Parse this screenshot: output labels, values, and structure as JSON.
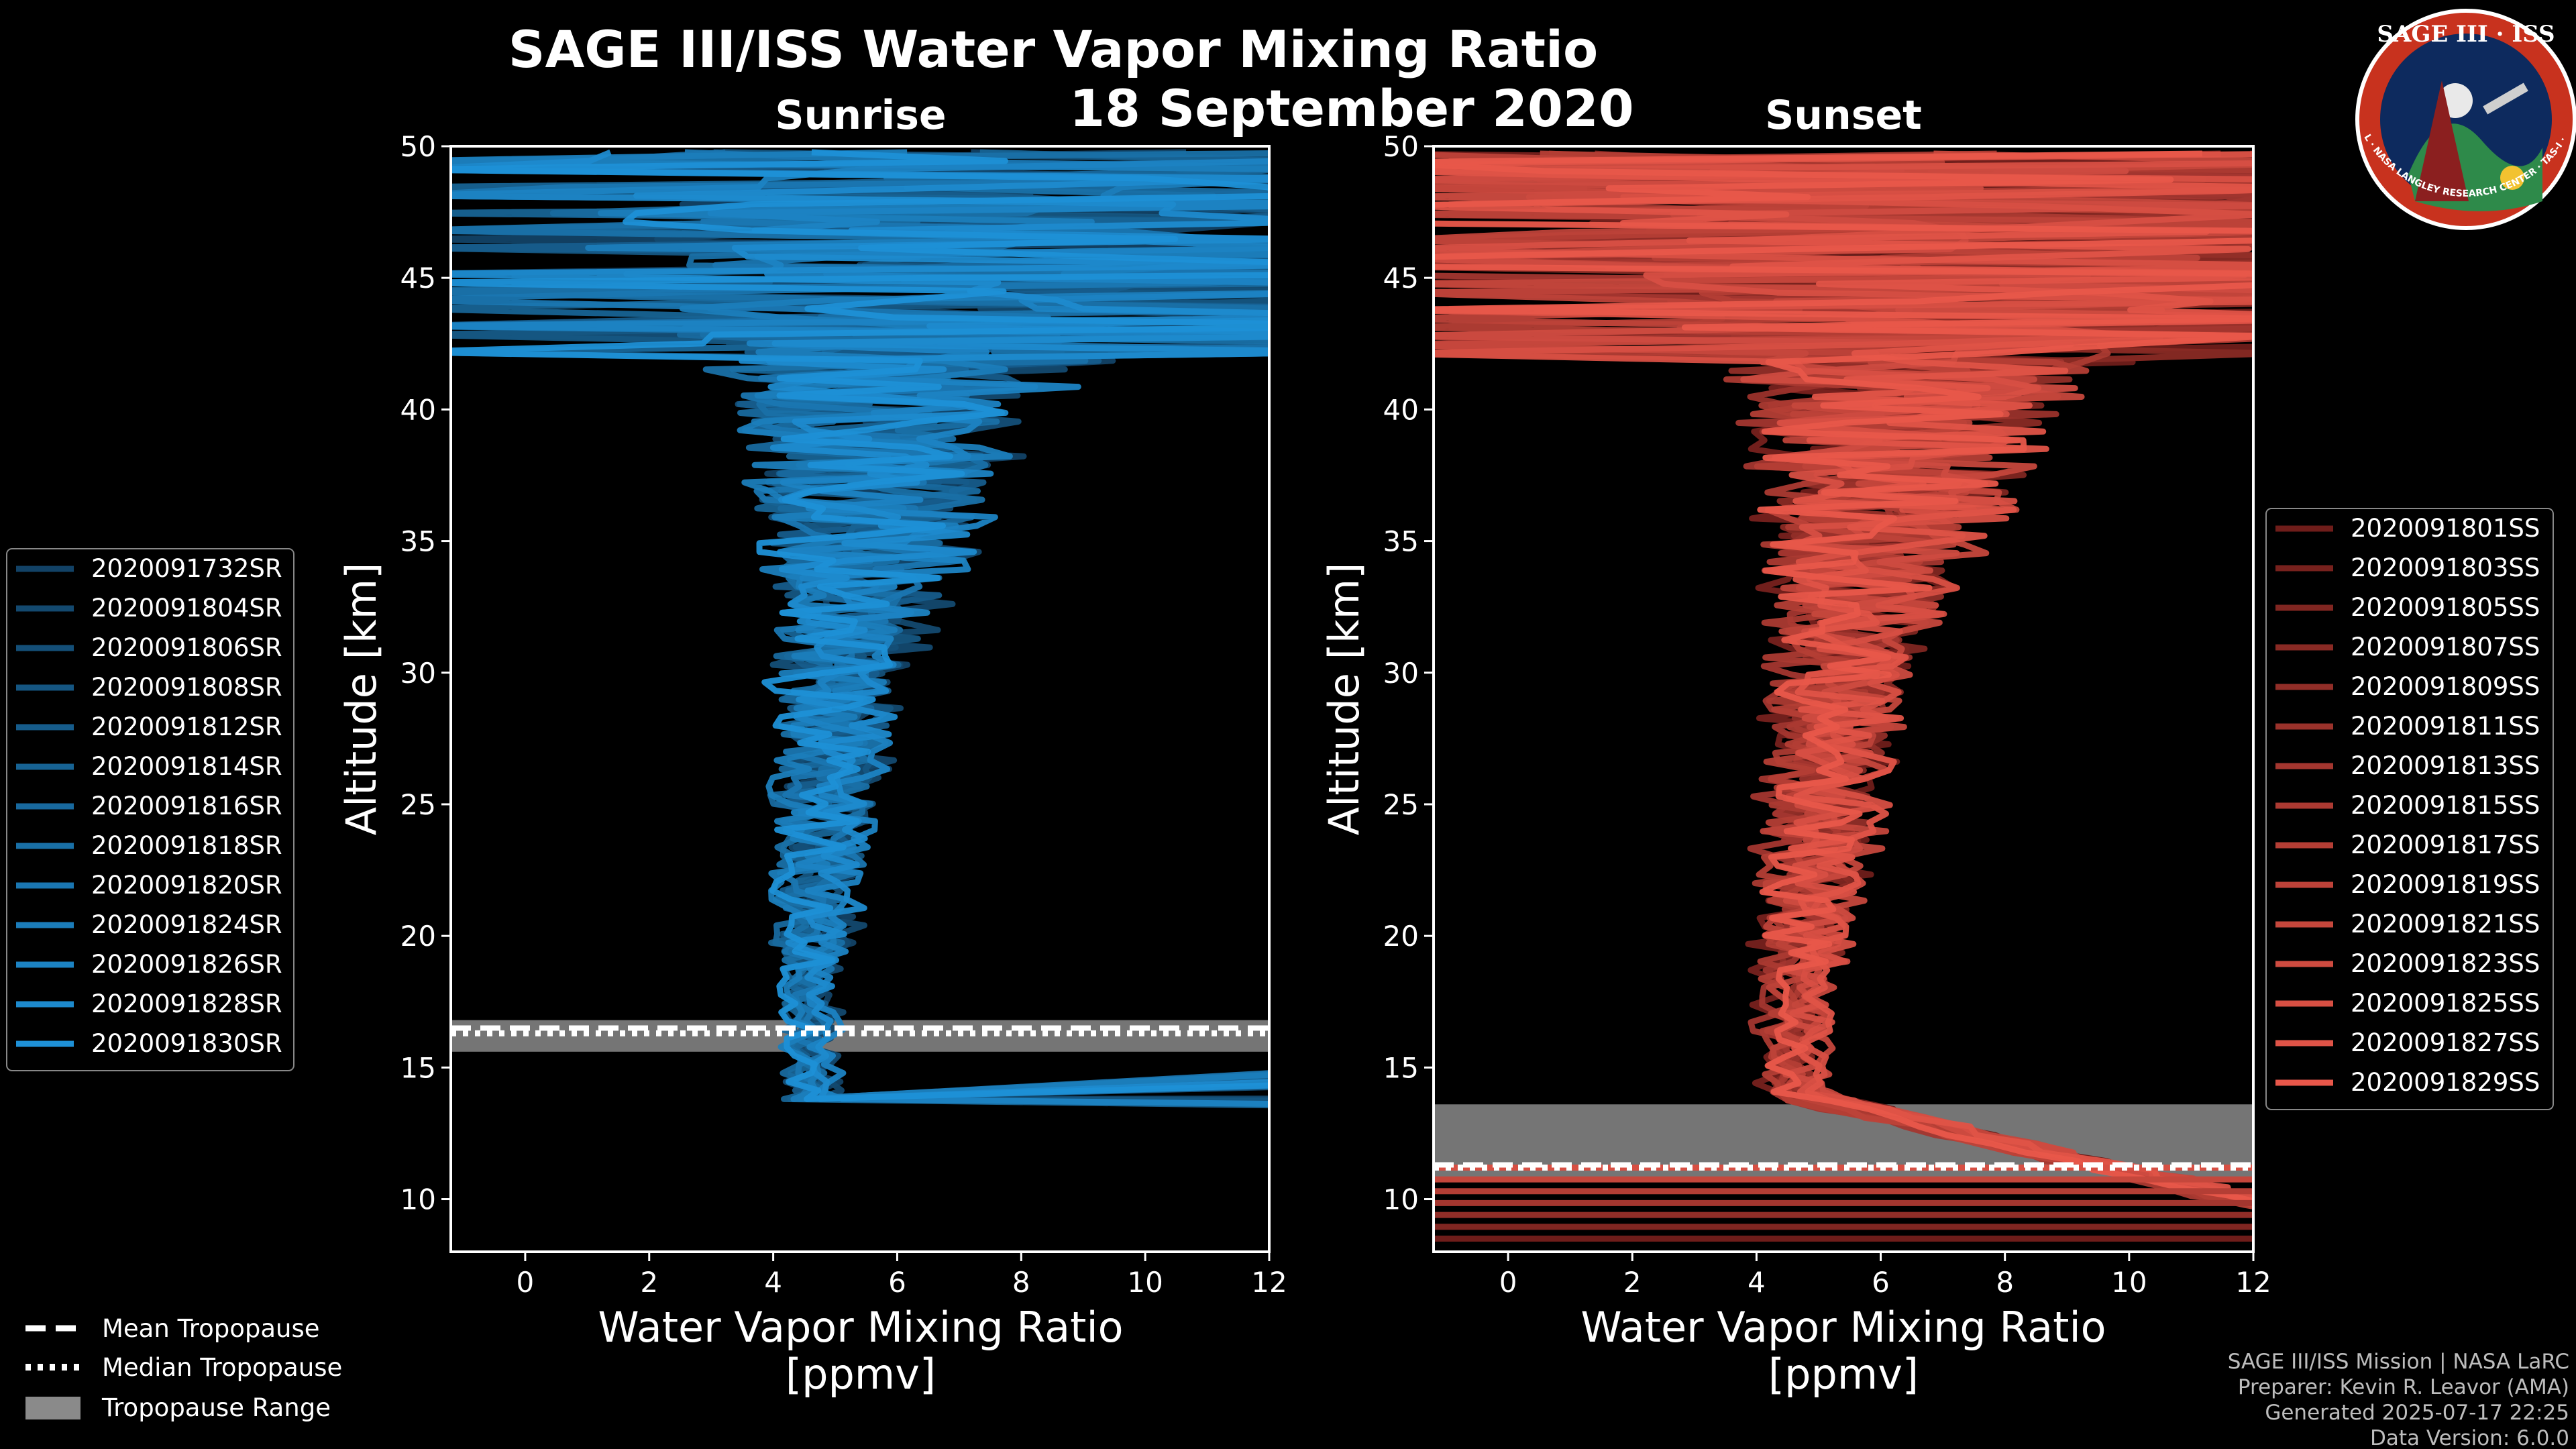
{
  "figure": {
    "title": "SAGE III/ISS Water Vapor Mixing Ratio",
    "date": "18 September 2020",
    "footer": [
      "SAGE III/ISS Mission | NASA LaRC",
      "Preparer: Kevin R. Leavor (AMA)",
      "Generated 2025-07-17 22:25",
      "Data Version: 6.0.0"
    ],
    "logo": {
      "title": "SAGE III · ISS",
      "ring_text": "BALL · NASA LANGLEY RESEARCH CENTER · TAS-I · ESA"
    },
    "colors": {
      "background": "#000000",
      "sunrise": "#1e90d6",
      "sunset": "#e8574a",
      "range": "#8a8a8a"
    }
  },
  "tropopause_legend": {
    "mean_label": "Mean Tropopause",
    "median_label": "Median Tropopause",
    "range_label": "Tropopause Range"
  },
  "chart_data": [
    {
      "type": "line",
      "panel": "sunrise",
      "title": "Sunrise",
      "xlabel": "Water Vapor Mixing Ratio",
      "xunit": "[ppmv]",
      "ylabel": "Altitude [km]",
      "xlim": [
        -1.2,
        12
      ],
      "ylim": [
        8,
        50
      ],
      "xticks": [
        0,
        2,
        4,
        6,
        8,
        10,
        12
      ],
      "yticks": [
        10,
        15,
        20,
        25,
        30,
        35,
        40,
        45,
        50
      ],
      "legend": [
        "2020091732SR",
        "2020091804SR",
        "2020091806SR",
        "2020091808SR",
        "2020091812SR",
        "2020091814SR",
        "2020091816SR",
        "2020091818SR",
        "2020091820SR",
        "2020091824SR",
        "2020091826SR",
        "2020091828SR",
        "2020091830SR"
      ],
      "tropopause": {
        "mean": 16.5,
        "median": 16.3,
        "range": [
          15.6,
          16.8
        ]
      },
      "profile_min_altitude": 13.5
    },
    {
      "type": "line",
      "panel": "sunset",
      "title": "Sunset",
      "xlabel": "Water Vapor Mixing Ratio",
      "xunit": "[ppmv]",
      "ylabel": "Altitude [km]",
      "xlim": [
        -1.2,
        12
      ],
      "ylim": [
        8,
        50
      ],
      "xticks": [
        0,
        2,
        4,
        6,
        8,
        10,
        12
      ],
      "yticks": [
        10,
        15,
        20,
        25,
        30,
        35,
        40,
        45,
        50
      ],
      "legend": [
        "2020091801SS",
        "2020091803SS",
        "2020091805SS",
        "2020091807SS",
        "2020091809SS",
        "2020091811SS",
        "2020091813SS",
        "2020091815SS",
        "2020091817SS",
        "2020091819SS",
        "2020091821SS",
        "2020091823SS",
        "2020091825SS",
        "2020091827SS",
        "2020091829SS"
      ],
      "tropopause": {
        "mean": 11.3,
        "median": 11.2,
        "range": [
          10.7,
          13.6
        ]
      },
      "profile_min_altitude": 8.5
    }
  ]
}
